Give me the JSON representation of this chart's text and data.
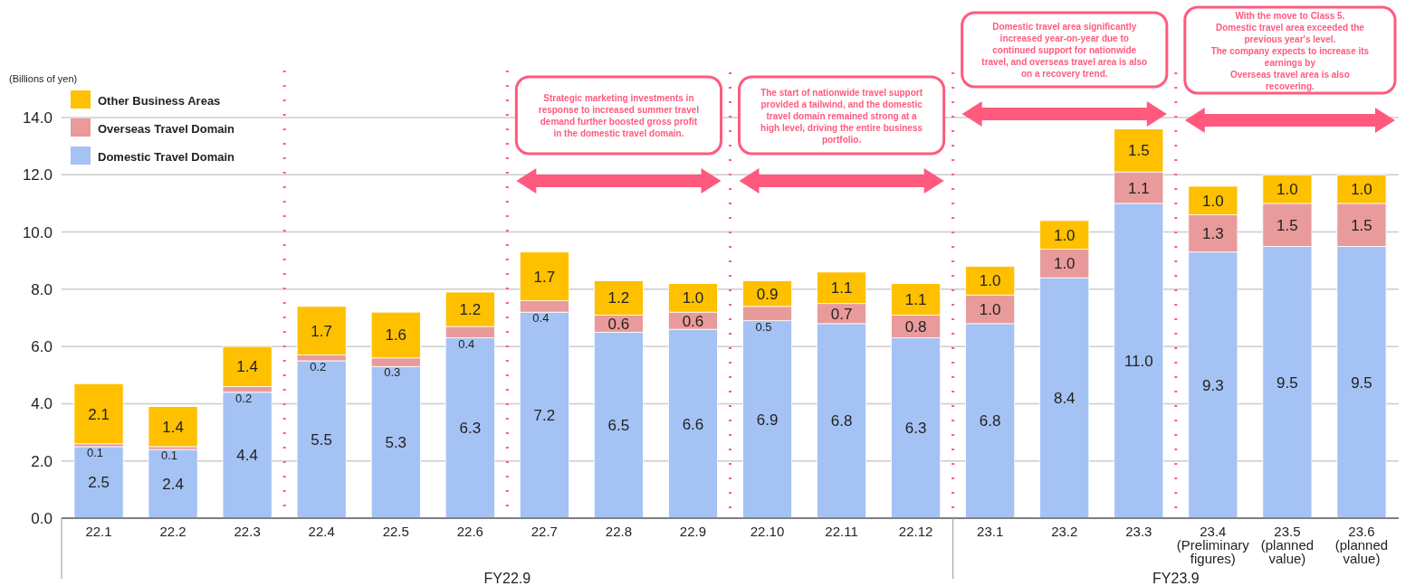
{
  "chart_data": {
    "type": "bar",
    "stacked": true,
    "ylabel": "(Billions of yen)",
    "categories": [
      "22.1",
      "22.2",
      "22.3",
      "22.4",
      "22.5",
      "22.6",
      "22.7",
      "22.8",
      "22.9",
      "22.10",
      "22.11",
      "22.12",
      "23.1",
      "23.2",
      "23.3",
      "23.4\n(Preliminary\nfigures)",
      "23.5\n(planned\nvalue)",
      "23.6\n(planned\nvalue)"
    ],
    "series": [
      {
        "name": "Domestic Travel Domain",
        "color": "#a4c2f4",
        "values": [
          2.5,
          2.4,
          4.4,
          5.5,
          5.3,
          6.3,
          7.2,
          6.5,
          6.6,
          6.9,
          6.8,
          6.3,
          6.8,
          8.4,
          11.0,
          9.3,
          9.5,
          9.5
        ],
        "value_labels": [
          "2.5",
          "2.4",
          "4.4",
          "5.5",
          "5.3",
          "6.3",
          "7.2",
          "6.5",
          "6.6",
          "6.9",
          "6.8",
          "6.3",
          "6.8",
          "8.4",
          "11.0",
          "9.3",
          "9.5",
          "9.5"
        ]
      },
      {
        "name": "Overseas Travel Domain",
        "color": "#e99a9a",
        "values": [
          0.1,
          0.1,
          0.2,
          0.2,
          0.3,
          0.4,
          0.4,
          0.6,
          0.6,
          0.5,
          0.7,
          0.8,
          1.0,
          1.0,
          1.1,
          1.3,
          1.5,
          1.5
        ],
        "value_labels": [
          "0.1",
          "0.1",
          "0.2",
          "0.2",
          "0.3",
          "0.4",
          "0.4",
          "0.6",
          "0.6",
          "0.5",
          "0.7",
          "0.8",
          "1.0",
          "1.0",
          "1.1",
          "1.3",
          "1.5",
          "1.5"
        ]
      },
      {
        "name": "Other Business Areas",
        "color": "#ffc000",
        "values": [
          2.1,
          1.4,
          1.4,
          1.7,
          1.6,
          1.2,
          1.7,
          1.2,
          1.0,
          0.9,
          1.1,
          1.1,
          1.0,
          1.0,
          1.5,
          1.0,
          1.0,
          1.0
        ],
        "value_labels": [
          "2.1",
          "1.4",
          "1.4",
          "1.7",
          "1.6",
          "1.2",
          "1.7",
          "1.2",
          "1.0",
          "0.9",
          "1.1",
          "1.1",
          "1.0",
          "1.0",
          "1.5",
          "1.0",
          "1.0",
          "1.0"
        ]
      }
    ],
    "ylim": [
      0,
      14
    ],
    "yticks": [
      {
        "value": 0,
        "label": "0.0"
      },
      {
        "value": 2,
        "label": "2.0"
      },
      {
        "value": 4,
        "label": "4.0"
      },
      {
        "value": 6,
        "label": "6.0"
      },
      {
        "value": 8,
        "label": "8.0"
      },
      {
        "value": 10,
        "label": "10.0"
      },
      {
        "value": 12,
        "label": "12.0"
      },
      {
        "value": 14,
        "label": "14.0"
      }
    ],
    "grid": "y",
    "legend": "top left",
    "annotations": [
      "Strategic marketing investments in\nresponse to increased summer travel\ndemand further boosted gross profit\nin the domestic travel domain.",
      "The start of nationwide travel support\nprovided a tailwind, and the domestic\ntravel domain remained strong at a\nhigh level, driving the entire business\nportfolio.",
      "Domestic travel area significantly\nincreased year-on-year due to\ncontinued support for nationwide\ntravel, and overseas travel area is also\non a recovery trend.",
      "With the move to Class 5.\nDomestic travel area exceeded the\nprevious year's level.\nThe company expects to increase its\nearnings by\nOverseas travel area is also\nrecovering.",
      "FY22.9",
      "FY23.9"
    ]
  }
}
